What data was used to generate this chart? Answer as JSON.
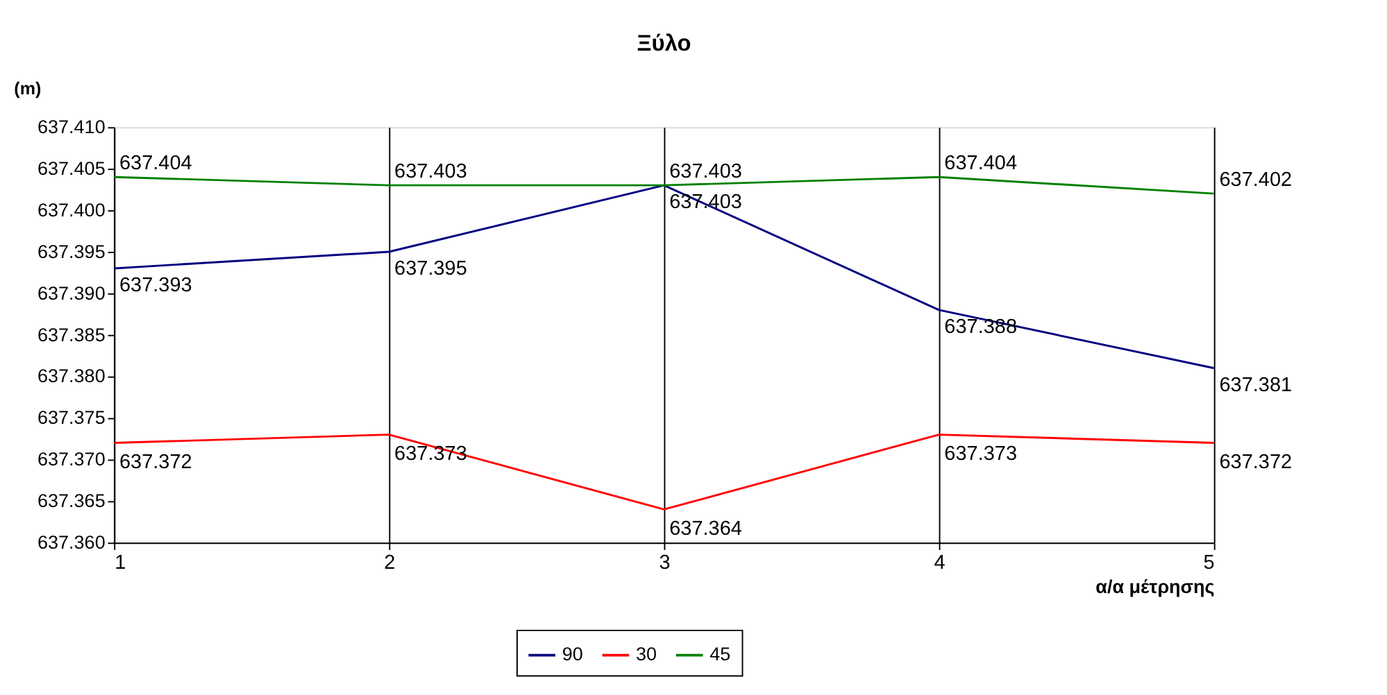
{
  "chart_data": {
    "type": "line",
    "title": "Ξύλο",
    "xlabel": "α/α μέτρησης",
    "ylabel": "(m)",
    "x": [
      1,
      2,
      3,
      4,
      5
    ],
    "series": [
      {
        "name": "90",
        "color": "#000080",
        "values": [
          637.393,
          637.395,
          637.403,
          637.388,
          637.381
        ]
      },
      {
        "name": "30",
        "color": "#ff0000",
        "values": [
          637.372,
          637.373,
          637.364,
          637.373,
          637.372
        ]
      },
      {
        "name": "45",
        "color": "#008000",
        "values": [
          637.404,
          637.403,
          637.403,
          637.404,
          637.402
        ]
      }
    ],
    "xlim": [
      1,
      5
    ],
    "xticks": [
      1,
      2,
      3,
      4,
      5
    ],
    "ylim": [
      637.36,
      637.41
    ],
    "yticks": [
      {
        "value": 637.36,
        "label": "637.360"
      },
      637.365,
      {
        "value": 637.37,
        "label": "637.370"
      },
      637.375,
      {
        "value": 637.38,
        "label": "637.380"
      },
      637.385,
      {
        "value": 637.39,
        "label": "637.390"
      },
      637.395,
      {
        "value": 637.4,
        "label": "637.400"
      },
      637.405,
      {
        "value": 637.41,
        "label": "637.410"
      }
    ],
    "grid": "x",
    "legend": "bottom",
    "data_labels": true,
    "marker": "none",
    "line_style": "solid"
  }
}
